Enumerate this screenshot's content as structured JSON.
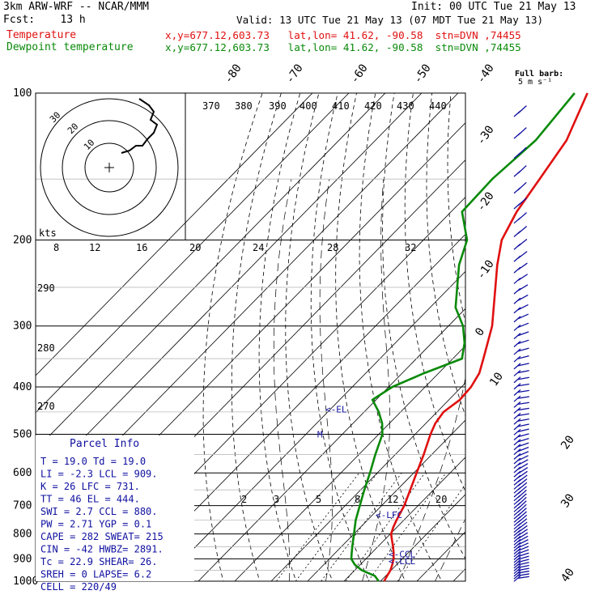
{
  "header": {
    "model": "3km ARW-WRF -- NCAR/MMM",
    "init": "Init: 00 UTC Tue 21 May 13",
    "fcst": "Fcst:    13 h",
    "valid": "Valid: 13 UTC Tue 21 May 13 (07 MDT Tue 21 May 13)",
    "temp_label": "Temperature",
    "temp_info": "x,y=677.12,603.73   lat,lon= 41.62, -90.58  stn=DVN ,74455",
    "dew_label": "Dewpoint temperature",
    "dew_info": "x,y=677.12,603.73   lat,lon= 41.62, -90.58  stn=DVN ,74455"
  },
  "barb_key": {
    "line1": "Full barb:",
    "line2": "5 m s⁻¹"
  },
  "colors": {
    "temperature": "#e01010",
    "dewpoint": "#0a8a0a",
    "parcel_text": "#1010a0",
    "hodograph": "#000000",
    "barbs": "#1010a0"
  },
  "chart_data": {
    "type": "line",
    "title": "",
    "ylabel": "",
    "y_scale": "log-pressure",
    "ylim": [
      1000,
      100
    ],
    "pressure_ticks": [
      100,
      200,
      300,
      400,
      500,
      600,
      700,
      800,
      900,
      1000
    ],
    "isotherm_ticks_top": [
      "-80",
      "-70",
      "-60",
      "-50",
      "-40"
    ],
    "isotherm_ticks_right": [
      "-30",
      "-20",
      "-10",
      "0",
      "10",
      "20",
      "30",
      "40"
    ],
    "theta_e_ticks": [
      "370",
      "380",
      "390",
      "400",
      "410",
      "420",
      "430",
      "440"
    ],
    "theta_left_ticks": [
      "290",
      "280",
      "270"
    ],
    "mixing_ratio_ticks": [
      "2",
      "3",
      "5",
      "8",
      "12",
      "20"
    ],
    "series": [
      {
        "points": [
          [
            1000,
            21.0
          ],
          [
            975,
            20.4
          ],
          [
            950,
            19.8
          ],
          [
            925,
            18.8
          ],
          [
            900,
            17.6
          ],
          [
            875,
            16.0
          ],
          [
            850,
            14.2
          ],
          [
            825,
            12.2
          ],
          [
            800,
            10.2
          ],
          [
            775,
            9.0
          ],
          [
            750,
            8.0
          ],
          [
            700,
            6.2
          ],
          [
            650,
            3.6
          ],
          [
            600,
            0.8
          ],
          [
            550,
            -2.2
          ],
          [
            500,
            -5.8
          ],
          [
            475,
            -7.4
          ],
          [
            450,
            -8.2
          ],
          [
            425,
            -7.0
          ],
          [
            400,
            -7.4
          ],
          [
            375,
            -8.8
          ],
          [
            350,
            -11.6
          ],
          [
            300,
            -18.0
          ],
          [
            250,
            -27.5
          ],
          [
            225,
            -33.0
          ],
          [
            200,
            -38.5
          ],
          [
            175,
            -42.0
          ],
          [
            150,
            -44.5
          ],
          [
            125,
            -47.5
          ],
          [
            100,
            -54.5
          ]
        ]
      },
      {
        "points": [
          [
            1000,
            19.5
          ],
          [
            975,
            17.0
          ],
          [
            950,
            12.0
          ],
          [
            925,
            8.5
          ],
          [
            900,
            6.0
          ],
          [
            875,
            4.5
          ],
          [
            850,
            3.0
          ],
          [
            800,
            0.0
          ],
          [
            750,
            -3.2
          ],
          [
            700,
            -6.0
          ],
          [
            650,
            -9.0
          ],
          [
            600,
            -12.0
          ],
          [
            550,
            -15.5
          ],
          [
            500,
            -19.0
          ],
          [
            475,
            -22.0
          ],
          [
            450,
            -26.0
          ],
          [
            425,
            -31.0
          ],
          [
            400,
            -29.0
          ],
          [
            375,
            -24.0
          ],
          [
            350,
            -17.5
          ],
          [
            325,
            -21.0
          ],
          [
            300,
            -26.0
          ],
          [
            275,
            -33.0
          ],
          [
            250,
            -38.0
          ],
          [
            225,
            -43.5
          ],
          [
            200,
            -48.0
          ],
          [
            175,
            -57.0
          ],
          [
            150,
            -57.5
          ],
          [
            125,
            -56.0
          ],
          [
            100,
            -58.0
          ]
        ]
      }
    ],
    "levels": [
      {
        "label": "<-EL",
        "p": 444
      },
      {
        "label": "M",
        "p": 500
      },
      {
        "label": "<-LFC",
        "p": 731
      },
      {
        "label": "<-CCL",
        "p": 880
      },
      {
        "label": "<-LCL",
        "p": 909
      }
    ],
    "hodograph": {
      "rings": [
        "10",
        "20",
        "30"
      ],
      "unit": "kts",
      "speed_ticks": [
        "8",
        "12",
        "16",
        "20",
        "24",
        "28",
        "32"
      ]
    }
  },
  "parcel_info": {
    "title": "Parcel Info",
    "rows": [
      "T  =    19.0  Td =  19.0",
      "LI =    -2.3  LCL =  909.",
      "K  =      26  LFC =  731.",
      "TT =      46  EL  =  444.",
      "SWI =    2.7  CCL =  880.",
      "PW =    2.71  YGP =   0.1",
      "CAPE =   282  SWEAT=  215",
      "CIN =    -42  HWBZ= 2891.",
      "Tc =    22.9  SHEAR=  26.",
      "SREH =     0  LAPSE=  6.2",
      "CELL = 220/49"
    ]
  }
}
